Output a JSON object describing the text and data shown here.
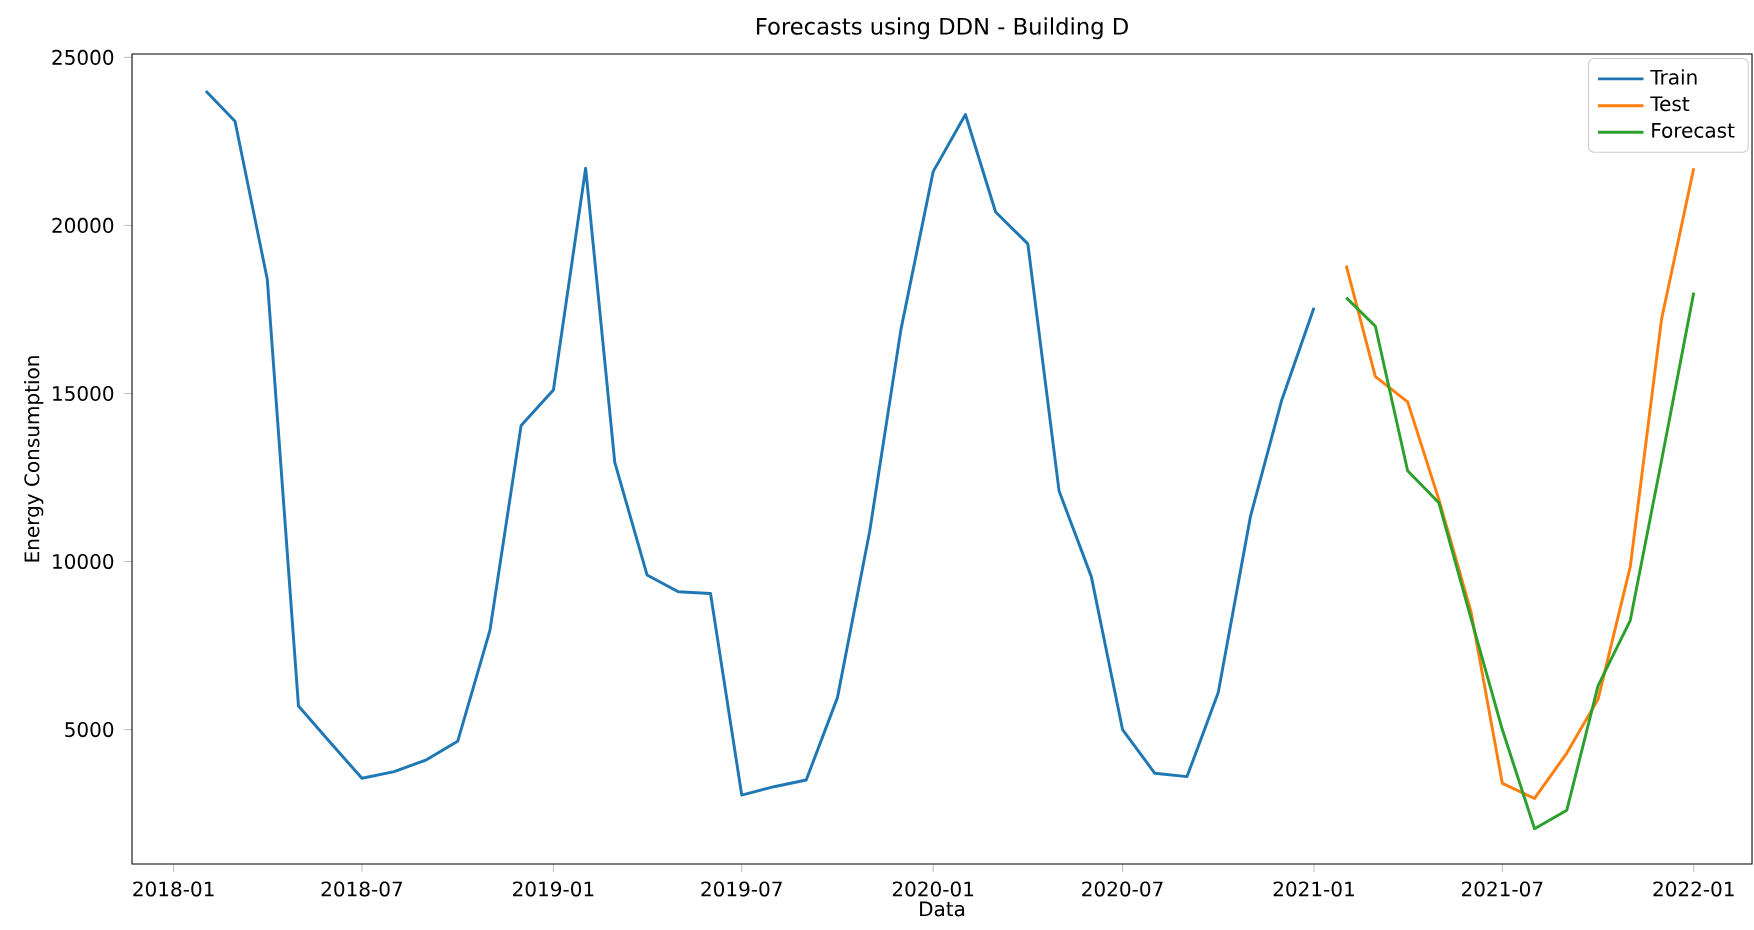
{
  "chart_data": {
    "type": "line",
    "title": "Forecasts using DDN - Building D",
    "xlabel": "Data",
    "ylabel": "Energy Consumption",
    "xlim": [
      "2017-11-22",
      "2022-02-26"
    ],
    "ylim": [
      1000,
      25100
    ],
    "xticks": [
      "2018-01",
      "2018-07",
      "2019-01",
      "2019-07",
      "2020-01",
      "2020-07",
      "2021-01",
      "2021-07",
      "2022-01"
    ],
    "yticks": [
      5000,
      10000,
      15000,
      20000,
      25000
    ],
    "legend": "top right",
    "grid": false,
    "series": [
      {
        "name": "Train",
        "color": "#1f77b4",
        "x": [
          "2018-02",
          "2018-03",
          "2018-04",
          "2018-05",
          "2018-06",
          "2018-07",
          "2018-08",
          "2018-09",
          "2018-10",
          "2018-11",
          "2018-12",
          "2019-01",
          "2019-02",
          "2019-03",
          "2019-04",
          "2019-05",
          "2019-06",
          "2019-07",
          "2019-08",
          "2019-09",
          "2019-10",
          "2019-11",
          "2019-12",
          "2020-01",
          "2020-02",
          "2020-03",
          "2020-04",
          "2020-05",
          "2020-06",
          "2020-07",
          "2020-08",
          "2020-09",
          "2020-10",
          "2020-11",
          "2020-12",
          "2021-01"
        ],
        "values": [
          24000,
          23100,
          18400,
          5700,
          4600,
          3550,
          3750,
          4100,
          4650,
          7950,
          14050,
          15100,
          21700,
          12950,
          9600,
          9100,
          9050,
          3050,
          3300,
          3500,
          5950,
          10900,
          16900,
          21600,
          23300,
          20400,
          19450,
          12100,
          9550,
          5000,
          3700,
          3600,
          6100,
          11350,
          14800,
          17550
        ]
      },
      {
        "name": "Test",
        "color": "#ff7f0e",
        "x": [
          "2021-02",
          "2021-03",
          "2021-04",
          "2021-05",
          "2021-06",
          "2021-07",
          "2021-08",
          "2021-09",
          "2021-10",
          "2021-11",
          "2021-12",
          "2022-01"
        ],
        "values": [
          18800,
          15500,
          14750,
          11850,
          8500,
          3400,
          2950,
          4300,
          5900,
          9850,
          17200,
          21700
        ]
      },
      {
        "name": "Forecast",
        "color": "#2ca02c",
        "x": [
          "2021-02",
          "2021-03",
          "2021-04",
          "2021-05",
          "2021-06",
          "2021-07",
          "2021-08",
          "2021-09",
          "2021-10",
          "2021-11",
          "2021-12",
          "2022-01"
        ],
        "values": [
          17850,
          17000,
          12700,
          11750,
          8300,
          5000,
          2050,
          2600,
          6300,
          8250,
          13000,
          18000
        ]
      }
    ]
  }
}
